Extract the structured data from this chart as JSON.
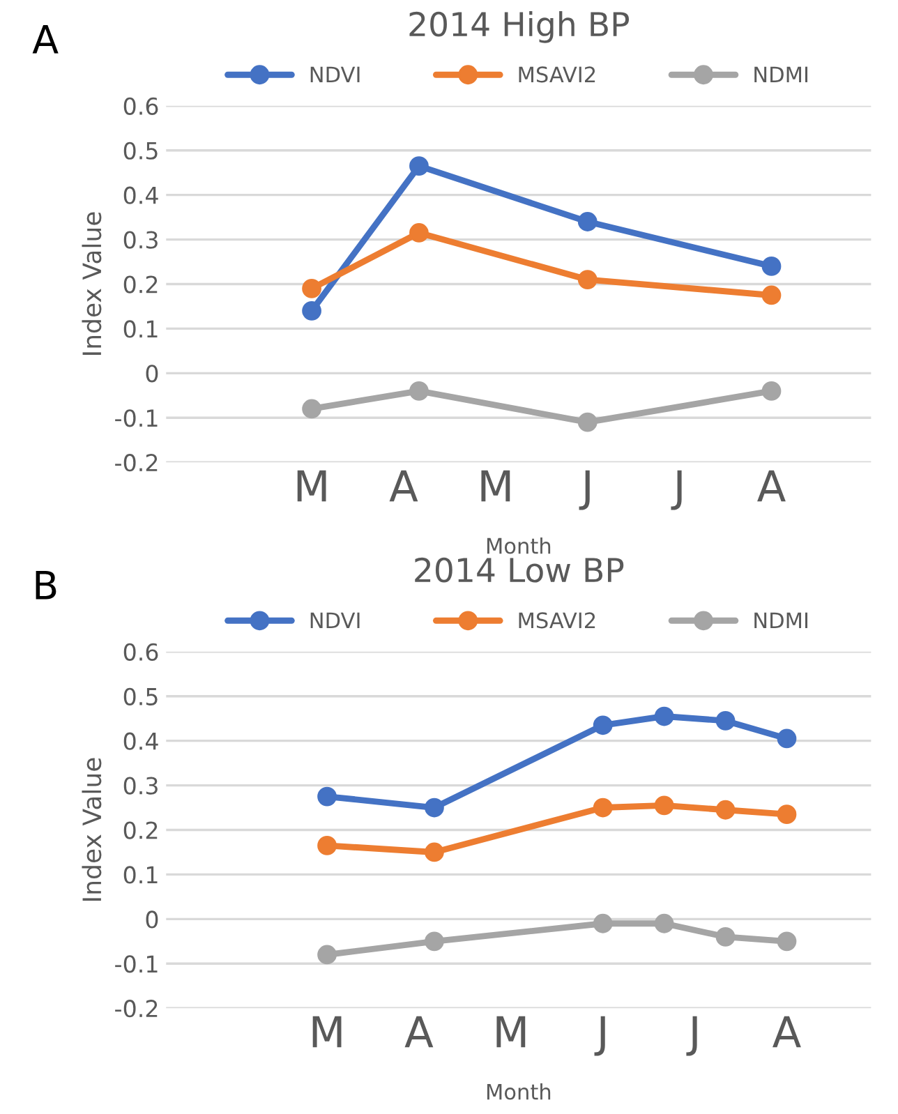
{
  "chart_data": [
    {
      "type": "line",
      "title": "2014 High BP",
      "xlabel": "Month",
      "ylabel": "Index Value",
      "annotations": [
        "A"
      ],
      "categories": [
        null,
        null,
        null,
        null,
        null,
        null,
        null,
        null,
        null,
        "M",
        null,
        null,
        null,
        null,
        null,
        "A",
        null,
        null,
        null,
        null,
        null,
        "M",
        null,
        null,
        null,
        null,
        null,
        "J",
        null,
        null,
        null,
        null,
        null,
        "J",
        null,
        null,
        null,
        null,
        null,
        "A",
        null,
        null,
        null,
        null,
        null,
        null
      ],
      "ylim": [
        -0.2,
        0.6
      ],
      "yticks": [
        -0.2,
        -0.1,
        0,
        0.1,
        0.2,
        0.3,
        0.4,
        0.5,
        0.6
      ],
      "series": [
        {
          "name": "NDVI",
          "color": "#4472c4",
          "values": [
            null,
            null,
            null,
            null,
            null,
            null,
            null,
            null,
            null,
            0.14,
            null,
            null,
            null,
            null,
            null,
            null,
            0.465,
            null,
            null,
            null,
            null,
            null,
            null,
            null,
            null,
            null,
            null,
            0.34,
            null,
            null,
            null,
            null,
            null,
            null,
            null,
            null,
            null,
            null,
            null,
            0.24,
            null,
            null,
            null,
            null,
            null,
            null
          ]
        },
        {
          "name": "MSAVI2",
          "color": "#ed7d31",
          "values": [
            null,
            null,
            null,
            null,
            null,
            null,
            null,
            null,
            null,
            0.19,
            null,
            null,
            null,
            null,
            null,
            null,
            0.315,
            null,
            null,
            null,
            null,
            null,
            null,
            null,
            null,
            null,
            null,
            0.21,
            null,
            null,
            null,
            null,
            null,
            null,
            null,
            null,
            null,
            null,
            null,
            0.175,
            null,
            null,
            null,
            null,
            null,
            null
          ]
        },
        {
          "name": "NDMI",
          "color": "#a5a5a5",
          "values": [
            null,
            null,
            null,
            null,
            null,
            null,
            null,
            null,
            null,
            -0.08,
            null,
            null,
            null,
            null,
            null,
            null,
            -0.04,
            null,
            null,
            null,
            null,
            null,
            null,
            null,
            null,
            null,
            null,
            -0.11,
            null,
            null,
            null,
            null,
            null,
            null,
            null,
            null,
            null,
            null,
            null,
            -0.04,
            null,
            null,
            null,
            null,
            null,
            null
          ]
        }
      ],
      "grid": "y",
      "legend": "top",
      "marker": "circle",
      "line_style": "solid"
    },
    {
      "type": "line",
      "title": "2014 Low BP",
      "xlabel": "Month",
      "ylabel": "Index Value",
      "annotations": [
        "B"
      ],
      "categories": [
        null,
        null,
        null,
        null,
        null,
        null,
        null,
        null,
        null,
        null,
        "M",
        null,
        null,
        null,
        null,
        null,
        "A",
        null,
        null,
        null,
        null,
        null,
        "M",
        null,
        null,
        null,
        null,
        null,
        "J",
        null,
        null,
        null,
        null,
        null,
        "J",
        null,
        null,
        null,
        null,
        null,
        "A",
        null,
        null,
        null,
        null,
        null
      ],
      "ylim": [
        -0.2,
        0.6
      ],
      "yticks": [
        -0.2,
        -0.1,
        0,
        0.1,
        0.2,
        0.3,
        0.4,
        0.5,
        0.6
      ],
      "series": [
        {
          "name": "NDVI",
          "color": "#4472c4",
          "values": [
            null,
            null,
            null,
            null,
            null,
            null,
            null,
            null,
            null,
            null,
            0.275,
            null,
            null,
            null,
            null,
            null,
            null,
            0.25,
            null,
            null,
            null,
            null,
            null,
            null,
            null,
            null,
            null,
            null,
            0.435,
            null,
            null,
            null,
            0.455,
            null,
            null,
            null,
            0.445,
            null,
            null,
            null,
            0.405,
            null,
            null,
            null,
            null,
            null
          ]
        },
        {
          "name": "MSAVI2",
          "color": "#ed7d31",
          "values": [
            null,
            null,
            null,
            null,
            null,
            null,
            null,
            null,
            null,
            null,
            0.165,
            null,
            null,
            null,
            null,
            null,
            null,
            0.15,
            null,
            null,
            null,
            null,
            null,
            null,
            null,
            null,
            null,
            null,
            0.25,
            null,
            null,
            null,
            0.255,
            null,
            null,
            null,
            0.245,
            null,
            null,
            null,
            0.235,
            null,
            null,
            null,
            null,
            null
          ]
        },
        {
          "name": "NDMI",
          "color": "#a5a5a5",
          "values": [
            null,
            null,
            null,
            null,
            null,
            null,
            null,
            null,
            null,
            null,
            -0.08,
            null,
            null,
            null,
            null,
            null,
            null,
            -0.05,
            null,
            null,
            null,
            null,
            null,
            null,
            null,
            null,
            null,
            null,
            -0.01,
            null,
            null,
            null,
            -0.01,
            null,
            null,
            null,
            -0.04,
            null,
            null,
            null,
            -0.05,
            null,
            null,
            null,
            null,
            null
          ]
        }
      ],
      "grid": "y",
      "legend": "top",
      "marker": "circle",
      "line_style": "solid"
    }
  ]
}
